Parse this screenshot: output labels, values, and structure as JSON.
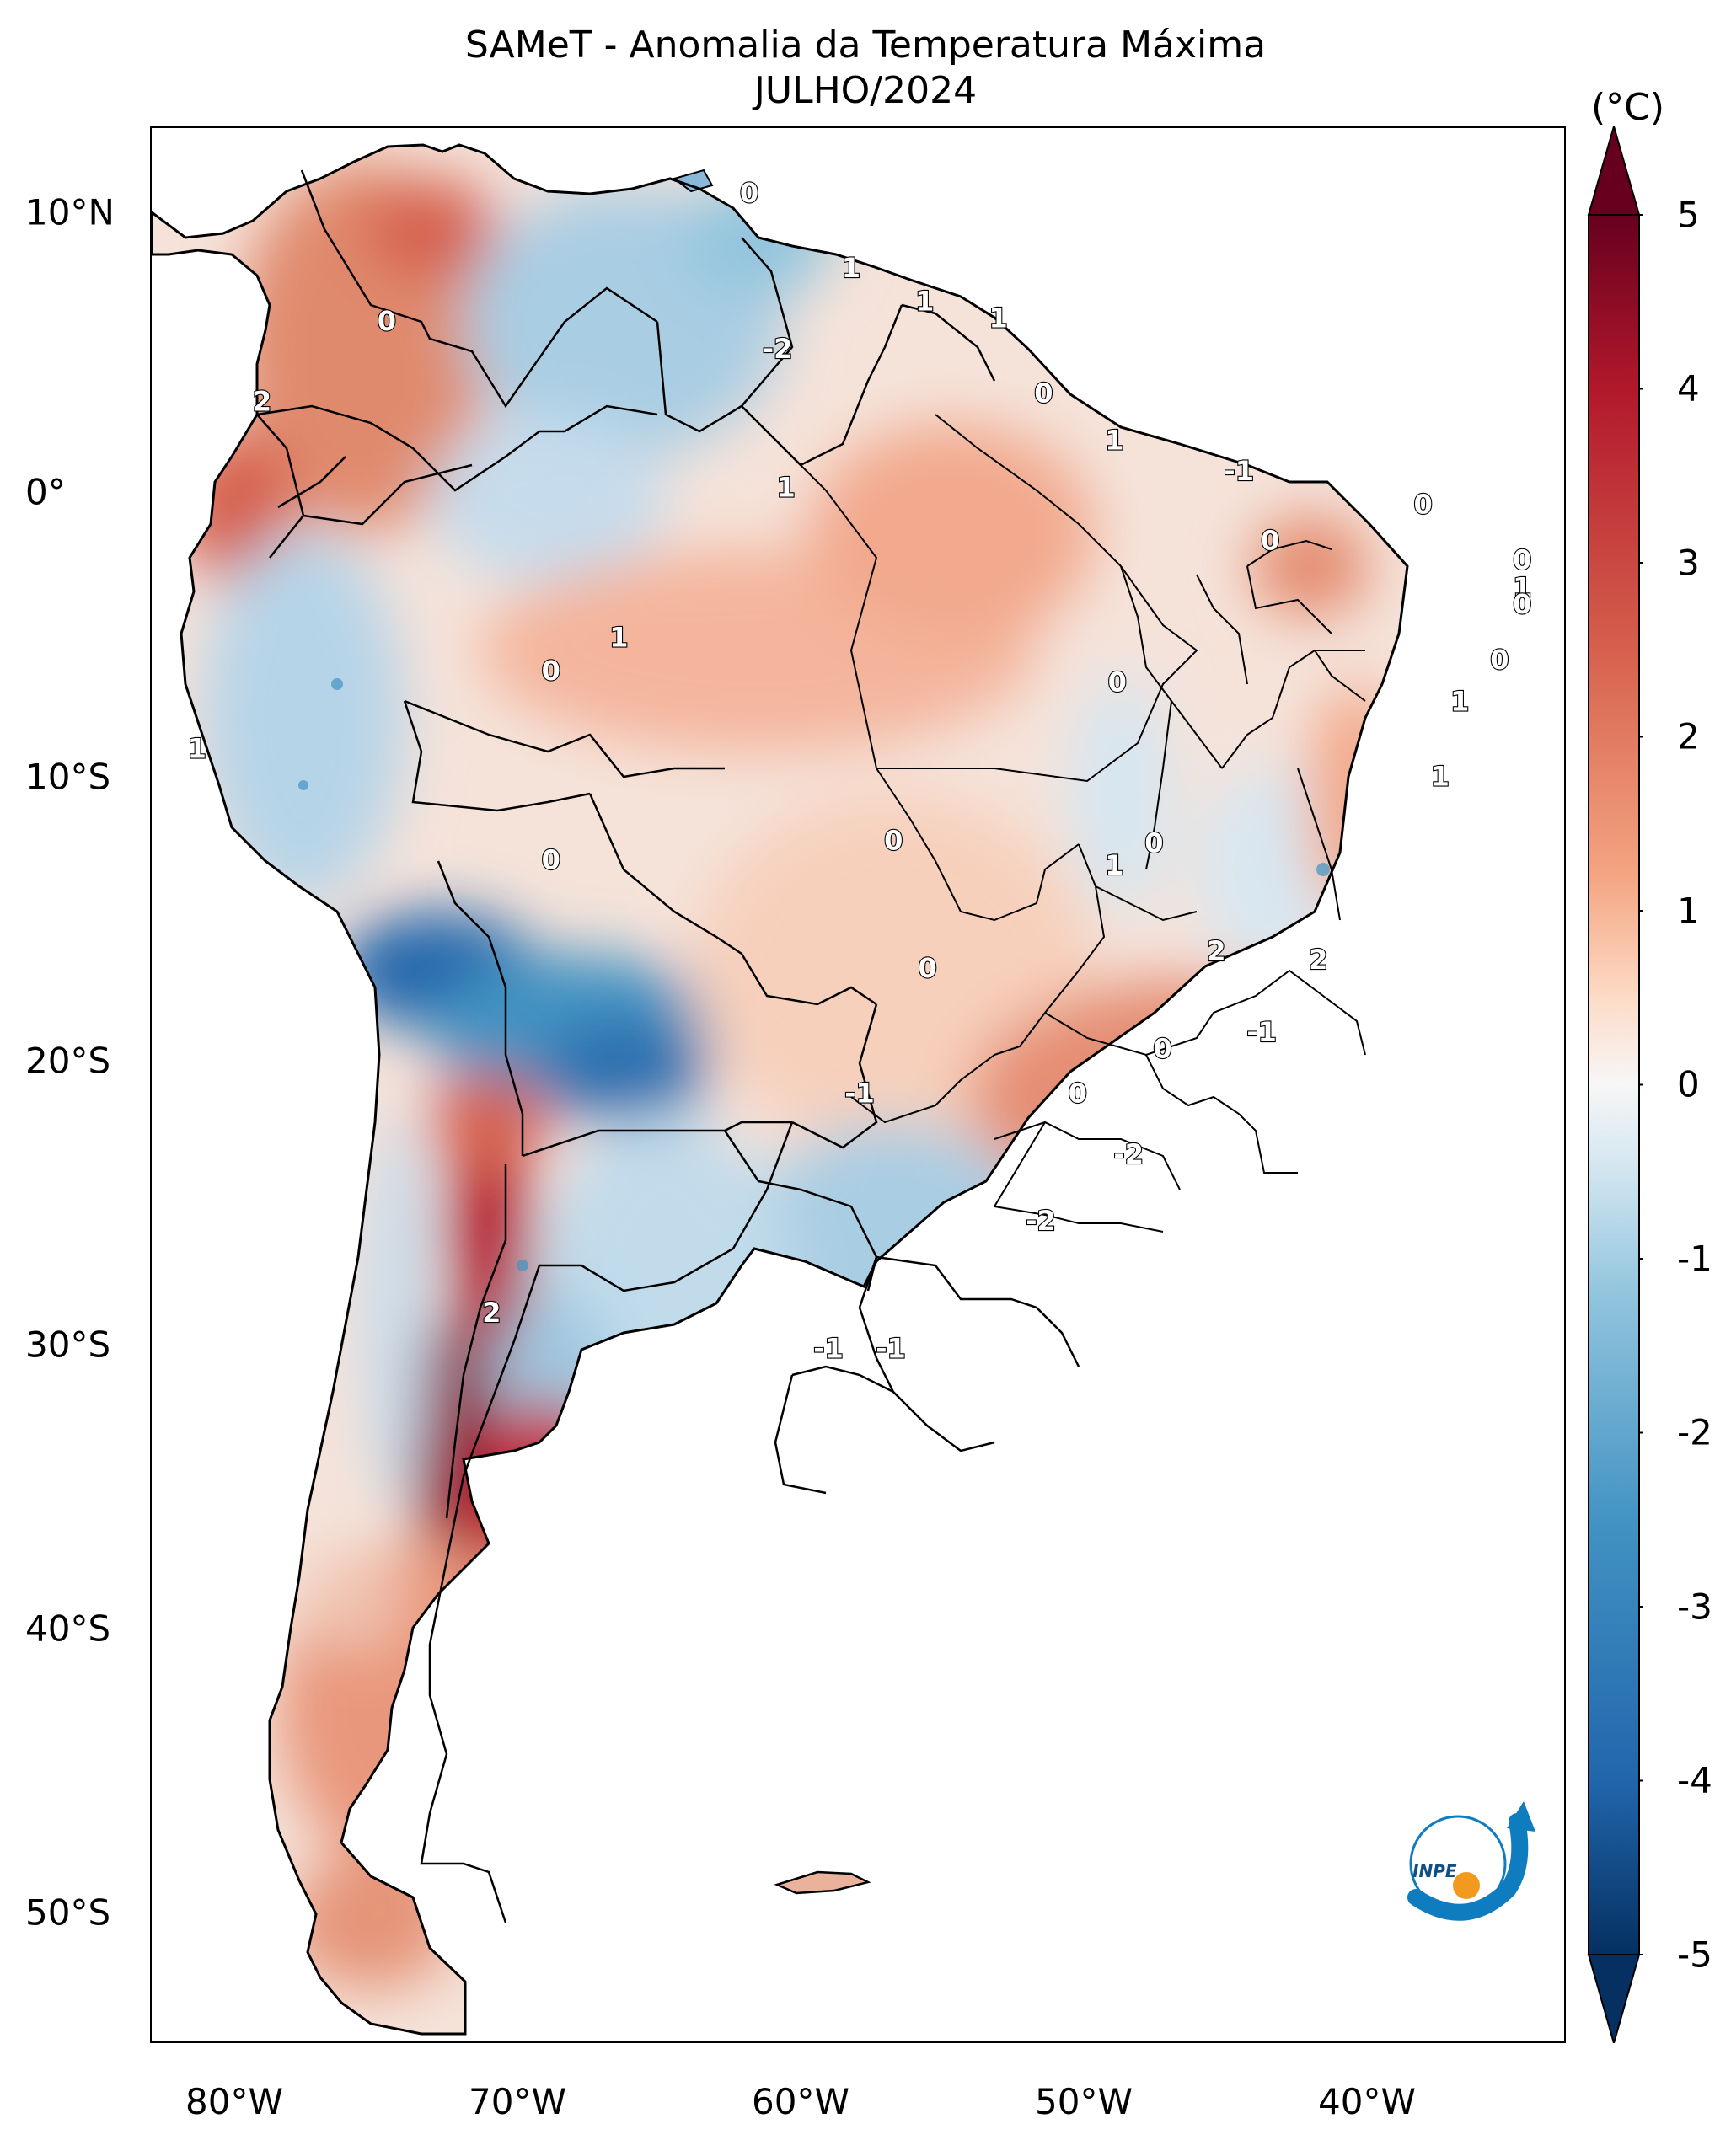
{
  "title": {
    "line1": "SAMeT - Anomalia da Temperatura Máxima",
    "line2": "JULHO/2024"
  },
  "colorbar": {
    "unit": "(°C)",
    "ticks": [
      "5",
      "4",
      "3",
      "2",
      "1",
      "0",
      "-1",
      "-2",
      "-3",
      "-4",
      "-5"
    ],
    "range": [
      -5,
      5
    ],
    "extend": "both",
    "colormap": "RdBu_r",
    "colors": {
      "max": "#67001f",
      "warm": "#d6604d",
      "light_warm": "#fddbc7",
      "neutral": "#f7f7f7",
      "light_cool": "#d1e5f0",
      "cool": "#4393c3",
      "min": "#053061"
    }
  },
  "axes": {
    "lon_labels": [
      "80°W",
      "70°W",
      "60°W",
      "50°W",
      "40°W"
    ],
    "lat_labels": [
      "10°N",
      "0°",
      "10°S",
      "20°S",
      "30°S",
      "40°S",
      "50°S"
    ],
    "lon_range": [
      -83,
      -33
    ],
    "lat_range": [
      -56,
      13
    ]
  },
  "contour_labels": [
    {
      "text": "0",
      "lon": -61.9,
      "lat": 10.6
    },
    {
      "text": "1",
      "lon": -58.3,
      "lat": 7.9
    },
    {
      "text": "1",
      "lon": -55.7,
      "lat": 6.7
    },
    {
      "text": "1",
      "lon": -53.1,
      "lat": 6.1
    },
    {
      "text": "-2",
      "lon": -60.9,
      "lat": 5.0
    },
    {
      "text": "0",
      "lon": -74.7,
      "lat": 6.0
    },
    {
      "text": "0",
      "lon": -51.5,
      "lat": 3.4
    },
    {
      "text": "1",
      "lon": -49.0,
      "lat": 1.7
    },
    {
      "text": "-1",
      "lon": -44.6,
      "lat": 0.6
    },
    {
      "text": "2",
      "lon": -79.1,
      "lat": 3.1
    },
    {
      "text": "1",
      "lon": -60.6,
      "lat": 0.0
    },
    {
      "text": "0",
      "lon": -38.1,
      "lat": -0.6
    },
    {
      "text": "0",
      "lon": -43.5,
      "lat": -1.9
    },
    {
      "text": "0",
      "lon": -34.6,
      "lat": -2.6
    },
    {
      "text": "1",
      "lon": -34.6,
      "lat": -3.6
    },
    {
      "text": "0",
      "lon": -34.6,
      "lat": -4.2
    },
    {
      "text": "1",
      "lon": -66.5,
      "lat": -5.4
    },
    {
      "text": "0",
      "lon": -68.9,
      "lat": -6.6
    },
    {
      "text": "0",
      "lon": -35.4,
      "lat": -6.2
    },
    {
      "text": "0",
      "lon": -48.9,
      "lat": -7.0
    },
    {
      "text": "1",
      "lon": -36.8,
      "lat": -7.7
    },
    {
      "text": "1",
      "lon": -81.4,
      "lat": -9.4
    },
    {
      "text": "1",
      "lon": -37.5,
      "lat": -10.4
    },
    {
      "text": "0",
      "lon": -56.8,
      "lat": -12.7
    },
    {
      "text": "0",
      "lon": -47.6,
      "lat": -12.8
    },
    {
      "text": "0",
      "lon": -68.9,
      "lat": -13.4
    },
    {
      "text": "1",
      "lon": -49.0,
      "lat": -13.6
    },
    {
      "text": "2",
      "lon": -45.4,
      "lat": -16.7
    },
    {
      "text": "2",
      "lon": -41.8,
      "lat": -17.0
    },
    {
      "text": "0",
      "lon": -55.6,
      "lat": -17.3
    },
    {
      "text": "-1",
      "lon": -43.8,
      "lat": -19.6
    },
    {
      "text": "0",
      "lon": -47.3,
      "lat": -20.2
    },
    {
      "text": "-1",
      "lon": -58.0,
      "lat": -21.8
    },
    {
      "text": "0",
      "lon": -50.3,
      "lat": -21.8
    },
    {
      "text": "-2",
      "lon": -48.5,
      "lat": -24.0
    },
    {
      "text": "-2",
      "lon": -51.6,
      "lat": -26.4
    },
    {
      "text": "2",
      "lon": -71.0,
      "lat": -29.7
    },
    {
      "text": "-1",
      "lon": -59.1,
      "lat": -31.0
    },
    {
      "text": "-1",
      "lon": -56.9,
      "lat": -31.0
    }
  ],
  "logo": {
    "text": "INPE",
    "colors": {
      "arc": "#0f7cc0",
      "dot": "#f39a1e"
    }
  }
}
